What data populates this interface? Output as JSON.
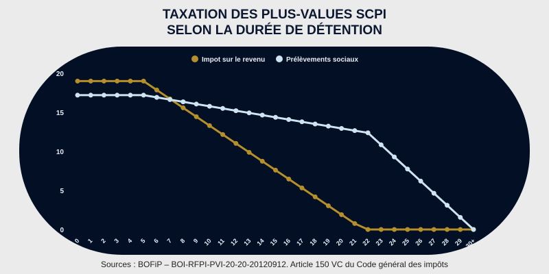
{
  "title_line1": "TAXATION DES PLUS-VALUES SCPI",
  "title_line2": "SELON LA DURÉE DE DÉTENTION",
  "source": "Sources : BOFiP – BOI-RFPI-PVI-20-20-20120912. Article 150 VC du Code général des impôts",
  "chart_data": {
    "type": "line",
    "categories": [
      "0",
      "1",
      "2",
      "3",
      "4",
      "5",
      "6",
      "7",
      "8",
      "9",
      "10",
      "11",
      "12",
      "13",
      "14",
      "15",
      "16",
      "17",
      "18",
      "19",
      "20",
      "21",
      "22",
      "23",
      "24",
      "25",
      "26",
      "27",
      "28",
      "29",
      "30+"
    ],
    "ylim": [
      0,
      20
    ],
    "yticks": [
      0,
      5,
      10,
      15,
      20
    ],
    "grid": false,
    "legend": "top-right",
    "series": [
      {
        "name": "Impot sur le revenu",
        "color": "#b58f2a",
        "values": [
          19,
          19,
          19,
          19,
          19,
          19,
          17.86,
          16.72,
          15.58,
          14.44,
          13.3,
          12.16,
          11.02,
          9.88,
          8.74,
          7.6,
          6.46,
          5.32,
          4.18,
          3.04,
          1.9,
          0.76,
          0,
          0,
          0,
          0,
          0,
          0,
          0,
          0,
          0
        ]
      },
      {
        "name": "Prélèvements sociaux",
        "color": "#cfe4f2",
        "values": [
          17.2,
          17.2,
          17.2,
          17.2,
          17.2,
          17.2,
          16.92,
          16.63,
          16.35,
          16.06,
          15.78,
          15.5,
          15.21,
          14.93,
          14.65,
          14.36,
          14.08,
          13.79,
          13.51,
          13.23,
          12.94,
          12.66,
          12.38,
          10.84,
          9.29,
          7.74,
          6.19,
          4.64,
          3.1,
          1.55,
          0
        ]
      }
    ]
  }
}
